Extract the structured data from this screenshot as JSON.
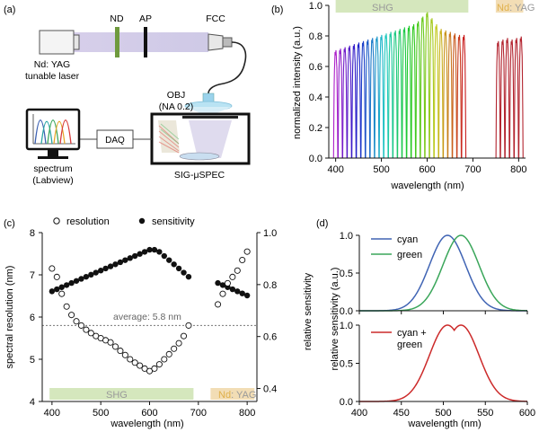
{
  "panel_labels": {
    "a": "(a)",
    "b": "(b)",
    "c": "(c)",
    "d": "(d)"
  },
  "schematic": {
    "nd": "ND",
    "ap": "AP",
    "fcc": "FCC",
    "laser_line1": "Nd: YAG",
    "laser_line2": "tunable laser",
    "obj_line1": "OBJ",
    "obj_line2": "(NA 0.2)",
    "daq": "DAQ",
    "spectrum_line1": "spectrum",
    "spectrum_line2": "(Labview)",
    "spec": "SIG-μSPEC"
  },
  "colors": {
    "shg_band": "#d5e7bd",
    "ndyag_band": "#f2ddb5",
    "cyan": "#4064b4",
    "green": "#3aa65a",
    "mix": "#cc2a2a"
  },
  "chart_data": [
    {
      "id": "b",
      "type": "line",
      "title": "",
      "xlabel": "wavelength (nm)",
      "ylabel": "normalized intensity (a.u.)",
      "xlim": [
        385,
        815
      ],
      "ylim": [
        0,
        1.0
      ],
      "xticks": [
        400,
        500,
        600,
        700,
        800
      ],
      "yticks": [
        0.0,
        0.2,
        0.4,
        0.6,
        0.8,
        1.0
      ],
      "band_labels": {
        "shg": "SHG",
        "ndyag_a": "Nd",
        "ndyag_b": ": YAG"
      },
      "bands": [
        {
          "x0": 400,
          "x1": 690
        },
        {
          "x0": 750,
          "x1": 810
        }
      ],
      "shg_centers": [
        400,
        410,
        420,
        430,
        440,
        450,
        460,
        470,
        480,
        490,
        500,
        510,
        520,
        530,
        540,
        550,
        560,
        570,
        580,
        590,
        600,
        610,
        620,
        630,
        640,
        650,
        660,
        670,
        680
      ],
      "shg_peaks": [
        0.69,
        0.7,
        0.71,
        0.72,
        0.73,
        0.74,
        0.75,
        0.76,
        0.77,
        0.78,
        0.79,
        0.8,
        0.81,
        0.82,
        0.83,
        0.84,
        0.85,
        0.86,
        0.88,
        0.91,
        0.94,
        0.9,
        0.86,
        0.83,
        0.82,
        0.81,
        0.8,
        0.79,
        0.79
      ],
      "ndyag_centers": [
        755,
        765,
        775,
        785,
        795,
        805
      ],
      "ndyag_peaks": [
        0.75,
        0.76,
        0.77,
        0.76,
        0.77,
        0.78
      ]
    },
    {
      "id": "c",
      "type": "scatter",
      "xlabel": "wavelength (nm)",
      "ylabel_left": "spectral resolution (nm)",
      "ylabel_right": "relative sensitivity",
      "xlim": [
        380,
        820
      ],
      "ylim_left": [
        4,
        8
      ],
      "ylim_right": [
        0.35,
        1.0
      ],
      "xticks": [
        400,
        500,
        600,
        700,
        800
      ],
      "yticks_left": [
        4,
        5,
        6,
        7,
        8
      ],
      "yticks_right": [
        0.4,
        0.6,
        0.8,
        1.0
      ],
      "legend": {
        "resolution": "resolution",
        "sensitivity": "sensitivity"
      },
      "average_label": "average: 5.8 nm",
      "average_value": 5.8,
      "band_labels": {
        "shg": "SHG",
        "ndyag_a": "Nd",
        "ndyag_b": ": YAG"
      },
      "bands": [
        {
          "x0": 395,
          "x1": 690
        },
        {
          "x0": 725,
          "x1": 815
        }
      ],
      "resolution": {
        "x": [
          400,
          410,
          420,
          430,
          440,
          450,
          460,
          470,
          480,
          490,
          500,
          510,
          520,
          530,
          540,
          550,
          560,
          570,
          580,
          590,
          600,
          610,
          620,
          630,
          640,
          650,
          660,
          670,
          680,
          740,
          750,
          760,
          770,
          780,
          790,
          800
        ],
        "y": [
          7.15,
          6.95,
          6.55,
          6.25,
          6.05,
          5.9,
          5.8,
          5.7,
          5.62,
          5.55,
          5.5,
          5.45,
          5.4,
          5.3,
          5.2,
          5.1,
          5.0,
          4.92,
          4.85,
          4.78,
          4.72,
          4.78,
          4.88,
          5.0,
          5.12,
          5.25,
          5.38,
          5.55,
          5.8,
          6.3,
          6.55,
          6.8,
          6.95,
          7.1,
          7.35,
          7.55
        ]
      },
      "sensitivity": {
        "x": [
          400,
          410,
          420,
          430,
          440,
          450,
          460,
          470,
          480,
          490,
          500,
          510,
          520,
          530,
          540,
          550,
          560,
          570,
          580,
          590,
          600,
          610,
          620,
          630,
          640,
          650,
          660,
          670,
          680,
          740,
          750,
          760,
          770,
          780,
          790,
          800
        ],
        "y": [
          0.774,
          0.782,
          0.79,
          0.798,
          0.806,
          0.814,
          0.822,
          0.83,
          0.838,
          0.846,
          0.854,
          0.862,
          0.87,
          0.878,
          0.886,
          0.894,
          0.902,
          0.91,
          0.918,
          0.926,
          0.934,
          0.934,
          0.926,
          0.91,
          0.894,
          0.878,
          0.862,
          0.846,
          0.83,
          0.806,
          0.798,
          0.79,
          0.782,
          0.774,
          0.766,
          0.758
        ]
      }
    },
    {
      "id": "d",
      "type": "line",
      "xlabel": "wavelength (nm)",
      "ylabel": "relative sensitivity (a.u.)",
      "xlim": [
        400,
        600
      ],
      "ylim": [
        0,
        1.0
      ],
      "xticks": [
        400,
        450,
        500,
        550,
        600
      ],
      "yticks": [
        0.0,
        0.5,
        1.0
      ],
      "top": {
        "series": [
          {
            "name": "cyan",
            "center": 505,
            "sigma": 21.5
          },
          {
            "name": "green",
            "center": 521,
            "sigma": 21.5
          }
        ]
      },
      "bottom": {
        "series": [
          {
            "name_line1": "cyan +",
            "name_line2": "green"
          }
        ],
        "centers": [
          505,
          521
        ],
        "sigma": 21.5
      }
    }
  ]
}
